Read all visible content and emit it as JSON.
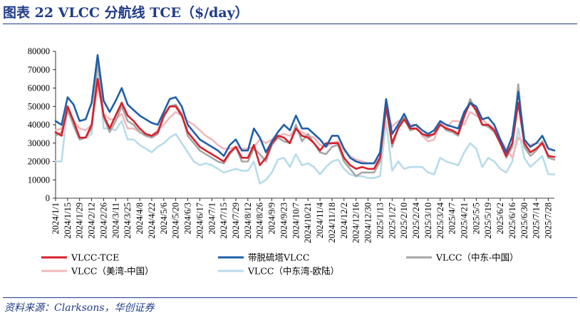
{
  "header": {
    "title": "图表 22   VLCC 分航线 TCE（$/day）"
  },
  "footer": {
    "source": "资料来源：Clarksons，华创证券"
  },
  "colors": {
    "tce": "#d6202b",
    "ara": "#1f5fa8",
    "meg_china": "#a6a6a6",
    "usg_china": "#f0b8bc",
    "meg_europe": "#b7dcea"
  },
  "chart_data": {
    "type": "line",
    "title": "VLCC 分航线 TCE（$/day）",
    "xlabel": "",
    "ylabel": "",
    "ylim": [
      0,
      80000
    ],
    "yticks": [
      0,
      10000,
      20000,
      30000,
      40000,
      50000,
      60000,
      70000,
      80000
    ],
    "grid": false,
    "legend": "bottom",
    "x": [
      "2024/1/1",
      "2024/1/8",
      "2024/1/15",
      "2024/1/22",
      "2024/1/29",
      "2024/2/5",
      "2024/2/12",
      "2024/2/19",
      "2024/2/26",
      "2024/3/4",
      "2024/3/11",
      "2024/3/18",
      "2024/3/25",
      "2024/4/1",
      "2024/4/8",
      "2024/4/15",
      "2024/4/22",
      "2024/4/29",
      "2024/5/6",
      "2024/5/13",
      "2024/5/20",
      "2024/5/27",
      "2024/6/3",
      "2024/6/10",
      "2024/6/17",
      "2024/6/24",
      "2024/7/1",
      "2024/7/8",
      "2024/7/15",
      "2024/7/22",
      "2024/7/29",
      "2024/8/5",
      "2024/8/12",
      "2024/8/19",
      "2024/8/26",
      "2024/9/2",
      "2024/9/9",
      "2024/9/16",
      "2024/9/23",
      "2024/9/30",
      "2024/10/7",
      "2024/10/14",
      "2024/10/21",
      "2024/10/28",
      "2024/11/4",
      "2024/11/11",
      "2024/11/18",
      "2024/11/25",
      "2024/12/2",
      "2024/12/9",
      "2024/12/16",
      "2024/12/23",
      "2024/12/30",
      "2025/1/6",
      "2025/1/13",
      "2025/1/20",
      "2025/1/27",
      "2025/2/3",
      "2025/2/10",
      "2025/2/17",
      "2025/2/24",
      "2025/3/3",
      "2025/3/10",
      "2025/3/17",
      "2025/3/24",
      "2025/3/31",
      "2025/4/7",
      "2025/4/14",
      "2025/4/21",
      "2025/4/28",
      "2025/5/5",
      "2025/5/12",
      "2025/5/19",
      "2025/5/26",
      "2025/6/2",
      "2025/6/9",
      "2025/6/16",
      "2025/6/23",
      "2025/6/30",
      "2025/7/7",
      "2025/7/14",
      "2025/7/21",
      "2025/7/28",
      "2025/8/4"
    ],
    "xticks": [
      "2024/1/1",
      "2024/1/15",
      "2024/1/29",
      "2024/2/12",
      "2024/2/26",
      "2024/3/11",
      "2024/3/25",
      "2024/4/8",
      "2024/4/22",
      "2024/5/6",
      "2024/5/20",
      "2024/6/3",
      "2024/6/17",
      "2024/7/1",
      "2024/7/15",
      "2024/7/29",
      "2024/8/12",
      "2024/8/26",
      "2024/9/9",
      "2024/9/23",
      "2024/10/7",
      "2024/10/21",
      "2024/11/4",
      "2024/11/18",
      "2024/12/2",
      "2024/12/16",
      "2024/12/30",
      "2025/1/13",
      "2025/1/27",
      "2025/2/10",
      "2025/2/24",
      "2025/3/10",
      "2025/3/24",
      "2025/4/7",
      "2025/4/21",
      "2025/5/5",
      "2025/5/19",
      "2025/6/2",
      "2025/6/16",
      "2025/6/30",
      "2025/7/14",
      "2025/7/28"
    ],
    "series": [
      {
        "key": "tce",
        "name": "VLCC-TCE",
        "values": [
          36000,
          34000,
          50000,
          42000,
          33000,
          33000,
          40000,
          65000,
          45000,
          38000,
          45000,
          52000,
          45000,
          42000,
          38000,
          35000,
          34000,
          36000,
          45000,
          50000,
          50000,
          45000,
          36000,
          32000,
          28000,
          26000,
          24000,
          22000,
          20000,
          25000,
          28000,
          22000,
          22000,
          29000,
          18000,
          22000,
          30000,
          34000,
          33000,
          30000,
          38000,
          34000,
          33000,
          30000,
          26000,
          30000,
          30000,
          30000,
          22000,
          18000,
          16000,
          17000,
          16000,
          16000,
          22000,
          50000,
          30000,
          38000,
          43000,
          38000,
          38000,
          35000,
          34000,
          35000,
          40000,
          38000,
          37000,
          35000,
          45000,
          52000,
          48000,
          40000,
          40000,
          37000,
          30000,
          23000,
          30000,
          52000,
          30000,
          25000,
          27000,
          30000,
          23000,
          22500
        ]
      },
      {
        "key": "ara",
        "name": "带脱硫塔VLCC",
        "values": [
          42000,
          40000,
          55000,
          51000,
          42000,
          43000,
          52000,
          78000,
          53000,
          47000,
          53000,
          60000,
          51000,
          48000,
          45000,
          43000,
          41000,
          40000,
          47000,
          54000,
          55000,
          50000,
          40000,
          36000,
          32000,
          30000,
          28000,
          26000,
          23000,
          29000,
          32000,
          26000,
          26000,
          38000,
          33000,
          25000,
          31000,
          36000,
          40000,
          37000,
          45000,
          38000,
          38000,
          35000,
          32000,
          28000,
          34000,
          34000,
          27000,
          22000,
          20000,
          19000,
          19000,
          19000,
          25000,
          54000,
          35000,
          40000,
          46000,
          39000,
          40000,
          37000,
          35000,
          37000,
          42000,
          40000,
          39000,
          38000,
          47000,
          52000,
          50000,
          43000,
          44000,
          40000,
          32000,
          25000,
          34000,
          58000,
          32000,
          28000,
          30000,
          34000,
          27000,
          26000
        ]
      },
      {
        "key": "meg_china",
        "name": "VLCC（中东-中国）",
        "values": [
          34000,
          36000,
          48000,
          40000,
          32000,
          33000,
          38000,
          75000,
          44000,
          36000,
          42000,
          50000,
          42000,
          40000,
          36000,
          34000,
          33000,
          35000,
          44000,
          50000,
          51000,
          46000,
          34000,
          30000,
          26000,
          24000,
          22000,
          20000,
          19000,
          24000,
          28000,
          20000,
          20000,
          27000,
          24000,
          20000,
          29000,
          33000,
          31000,
          30000,
          40000,
          31000,
          35000,
          30000,
          25000,
          24000,
          28000,
          29000,
          20000,
          16000,
          12000,
          14000,
          14000,
          14000,
          20000,
          52000,
          28000,
          38000,
          44000,
          37000,
          38000,
          35000,
          33000,
          35000,
          41000,
          37000,
          36000,
          34000,
          44000,
          54000,
          47000,
          40000,
          39000,
          36000,
          30000,
          22000,
          28000,
          62000,
          28000,
          23000,
          26000,
          31000,
          22000,
          21000
        ]
      },
      {
        "key": "usg_china",
        "name": "VLCC（美湾-中国）",
        "values": [
          37000,
          38000,
          47000,
          42000,
          38000,
          37000,
          40000,
          61000,
          46000,
          43000,
          43000,
          46000,
          38000,
          38000,
          36000,
          34000,
          34000,
          37000,
          40000,
          44000,
          47000,
          45000,
          42000,
          40000,
          37000,
          34000,
          32000,
          29000,
          27000,
          27000,
          28000,
          27000,
          27000,
          28000,
          32000,
          30000,
          32000,
          34000,
          35000,
          34000,
          38000,
          36000,
          34000,
          33000,
          29000,
          28000,
          30000,
          31000,
          26000,
          23000,
          21000,
          20000,
          19000,
          19000,
          22000,
          47000,
          39000,
          42000,
          43000,
          40000,
          40000,
          34000,
          31000,
          32000,
          41000,
          38000,
          42000,
          42000,
          40000,
          47000,
          45000,
          43000,
          40000,
          38000,
          32000,
          27000,
          22000,
          33000,
          30000,
          29000,
          30000,
          30000,
          27000,
          26000
        ]
      },
      {
        "key": "meg_europe",
        "name": "VLCC（中东湾-欧陆）",
        "values": [
          20000,
          20000,
          50000,
          39000,
          32000,
          33000,
          35000,
          73000,
          38000,
          38000,
          37000,
          42000,
          32000,
          32000,
          29000,
          27000,
          25000,
          28000,
          30000,
          33000,
          35000,
          30000,
          25000,
          20000,
          18000,
          19000,
          18000,
          16000,
          14000,
          15000,
          16000,
          15000,
          15000,
          20000,
          8000,
          10000,
          14000,
          21000,
          22000,
          17000,
          24000,
          18000,
          19000,
          17000,
          13000,
          17000,
          20000,
          21000,
          16000,
          13000,
          12000,
          12000,
          11000,
          11000,
          12000,
          42000,
          15000,
          20000,
          16000,
          17000,
          17000,
          17000,
          14000,
          13000,
          22000,
          20000,
          19000,
          18000,
          25000,
          30000,
          27000,
          17000,
          22000,
          20000,
          16000,
          14000,
          20000,
          38000,
          22000,
          17000,
          20000,
          23000,
          13000,
          13000
        ]
      }
    ]
  }
}
